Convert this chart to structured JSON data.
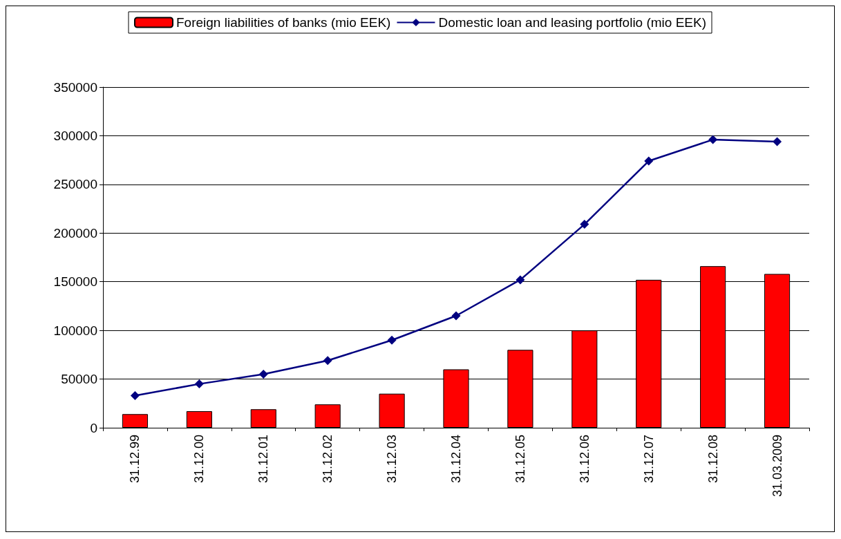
{
  "chart_data": {
    "type": "bar",
    "categories": [
      "31.12.99",
      "31.12.00",
      "31.12.01",
      "31.12.02",
      "31.12.03",
      "31.12.04",
      "31.12.05",
      "31.12.06",
      "31.12.07",
      "31.12.08",
      "31.03.2009"
    ],
    "series": [
      {
        "name": "Foreign liabilities of banks (mio EEK)",
        "color": "#ff0000",
        "values": [
          14000,
          17000,
          19000,
          24000,
          35000,
          60000,
          80000,
          100000,
          152000,
          166000,
          158000
        ]
      },
      {
        "name": "Domestic loan and leasing portfolio (mio EEK)",
        "type": "line",
        "color": "#000080",
        "marker": "diamond",
        "values": [
          33000,
          45000,
          55000,
          69000,
          90000,
          115000,
          152000,
          209000,
          274000,
          296000,
          294000
        ]
      }
    ],
    "ylim": [
      0,
      350000
    ],
    "yticks": [
      0,
      50000,
      100000,
      150000,
      200000,
      250000,
      300000,
      350000
    ],
    "grid": "y",
    "legend": "top"
  }
}
